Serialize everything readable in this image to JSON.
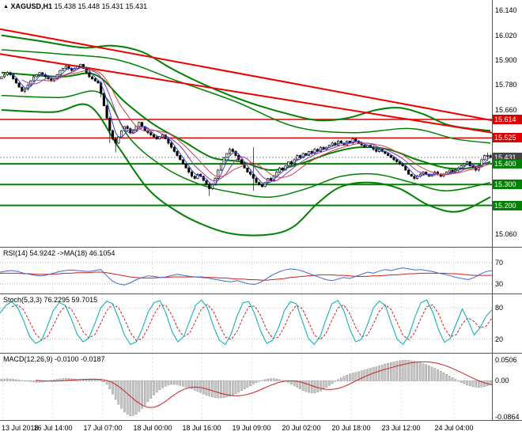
{
  "window": {
    "symbol": "XAGUSD,H1",
    "open": "15.438",
    "high": "15.448",
    "low": "15.431",
    "close": "15.431"
  },
  "colors": {
    "background": "#ffffff",
    "candle_bull": "#ffffff",
    "candle_bear": "#000000",
    "candle_outline": "#000000",
    "band_green": "#008000",
    "trend_red": "#ee0000",
    "rsi_line": "#4169cd",
    "rsi_ma": "#cc2222",
    "stoch_main": "#00adad",
    "stoch_signal": "#cc2222",
    "macd_hist_fill": "#c8c8c8",
    "macd_hist_stroke": "#808080",
    "macd_signal": "#cc2222",
    "grid": "#cfcfcf",
    "separator": "#555555",
    "badge_red": "#dd0000",
    "badge_green": "#008000",
    "badge_current": "#444444"
  },
  "price_axis": {
    "plain_labels": [
      "16.140",
      "16.020",
      "15.900",
      "15.780",
      "15.660",
      "15.060"
    ],
    "badges": [
      {
        "label": "15.614",
        "color": "red"
      },
      {
        "label": "15.525",
        "color": "red"
      },
      {
        "label": "15.431",
        "color": "current"
      },
      {
        "label": "15.400",
        "color": "green"
      },
      {
        "label": "15.300",
        "color": "green"
      },
      {
        "label": "15.200",
        "color": "green"
      }
    ]
  },
  "time_axis": {
    "labels": [
      "13 Jul 2018",
      "16 Jul 14:00",
      "17 Jul 07:00",
      "18 Jul 00:00",
      "18 Jul 16:00",
      "19 Jul 09:00",
      "20 Jul 02:00",
      "20 Jul 18:00",
      "23 Jul 12:00",
      "24 Jul 04:00"
    ],
    "indices": [
      1,
      18,
      35,
      52,
      69,
      86,
      103,
      120,
      137,
      155
    ]
  },
  "indicators": {
    "rsi": {
      "header": "RSI(14) 54.9242  ->MA(18) 46.1054",
      "levels": [
        "70",
        "30"
      ]
    },
    "stoch": {
      "header": "Stoch(5,3,3) 76.2295 59.7015",
      "levels": [
        "80",
        "20"
      ]
    },
    "macd": {
      "header": "MACD(12,26,9) -0.0100 -0.0187",
      "axis_labels": [
        "0.0506",
        "0.00",
        "-0.0864"
      ]
    }
  },
  "chart_data": [
    {
      "type": "candlestick",
      "title": "XAGUSD,H1",
      "ylim": [
        15.0,
        16.19
      ],
      "first_open": 15.81,
      "default_wick": 0.007,
      "closes": [
        15.82,
        15.83,
        15.84,
        15.83,
        15.81,
        15.79,
        15.77,
        15.75,
        15.76,
        15.78,
        15.8,
        15.82,
        15.83,
        15.84,
        15.83,
        15.82,
        15.81,
        15.8,
        15.81,
        15.83,
        15.85,
        15.86,
        15.87,
        15.86,
        15.85,
        15.86,
        15.87,
        15.88,
        15.86,
        15.84,
        15.82,
        15.81,
        15.8,
        15.79,
        15.74,
        15.68,
        15.62,
        15.56,
        15.52,
        15.5,
        15.53,
        15.56,
        15.58,
        15.57,
        15.55,
        15.56,
        15.58,
        15.6,
        15.58,
        15.56,
        15.55,
        15.54,
        15.53,
        15.52,
        15.53,
        15.54,
        15.52,
        15.5,
        15.48,
        15.46,
        15.44,
        15.42,
        15.4,
        15.38,
        15.36,
        15.34,
        15.33,
        15.35,
        15.34,
        15.32,
        15.3,
        15.28,
        15.3,
        15.33,
        15.37,
        15.4,
        15.43,
        15.45,
        15.47,
        15.46,
        15.44,
        15.42,
        15.4,
        15.38,
        15.36,
        15.35,
        15.33,
        15.31,
        15.3,
        15.29,
        15.31,
        15.33,
        15.32,
        15.34,
        15.36,
        15.38,
        15.37,
        15.39,
        15.41,
        15.4,
        15.42,
        15.44,
        15.43,
        15.45,
        15.44,
        15.46,
        15.45,
        15.47,
        15.46,
        15.48,
        15.47,
        15.48,
        15.49,
        15.5,
        15.49,
        15.51,
        15.5,
        15.49,
        15.51,
        15.5,
        15.52,
        15.51,
        15.5,
        15.49,
        15.48,
        15.49,
        15.48,
        15.47,
        15.46,
        15.47,
        15.46,
        15.45,
        15.44,
        15.43,
        15.42,
        15.41,
        15.4,
        15.39,
        15.37,
        15.35,
        15.34,
        15.33,
        15.34,
        15.35,
        15.36,
        15.35,
        15.34,
        15.35,
        15.36,
        15.35,
        15.34,
        15.35,
        15.36,
        15.37,
        15.36,
        15.37,
        15.38,
        15.39,
        15.4,
        15.41,
        15.39,
        15.38,
        15.37,
        15.39,
        15.42,
        15.44,
        15.44,
        15.431
      ],
      "wick_overrides": {
        "34": [
          15.8,
          15.72
        ],
        "37": [
          15.63,
          15.5
        ],
        "39": [
          15.53,
          15.455
        ],
        "71": [
          15.31,
          15.245
        ],
        "86": [
          15.48,
          15.27
        ],
        "166": [
          15.455,
          15.415
        ],
        "167": [
          15.448,
          15.425
        ]
      },
      "hlines": [
        {
          "price": 15.614,
          "color": "#dd0000",
          "width": 1.5
        },
        {
          "price": 15.525,
          "color": "#dd0000",
          "width": 1.5
        },
        {
          "price": 15.4,
          "color": "#008000",
          "width": 2
        },
        {
          "price": 15.3,
          "color": "#008000",
          "width": 2
        },
        {
          "price": 15.2,
          "color": "#008000",
          "width": 2
        }
      ],
      "current_price": 15.431,
      "trendlines": [
        {
          "points": [
            [
              0,
              16.05
            ],
            [
              168,
              15.61
            ]
          ],
          "color": "#ee0000",
          "width": 2
        },
        {
          "points": [
            [
              0,
              15.93
            ],
            [
              168,
              15.55
            ]
          ],
          "color": "#ee0000",
          "width": 2
        }
      ],
      "bands": [
        {
          "name": "upper",
          "color": "#008000",
          "width": 2,
          "points": [
            [
              0,
              16.02
            ],
            [
              14,
              15.99
            ],
            [
              28,
              15.96
            ],
            [
              38,
              15.97
            ],
            [
              48,
              15.94
            ],
            [
              58,
              15.86
            ],
            [
              68,
              15.79
            ],
            [
              78,
              15.73
            ],
            [
              88,
              15.68
            ],
            [
              98,
              15.64
            ],
            [
              108,
              15.61
            ],
            [
              118,
              15.62
            ],
            [
              128,
              15.66
            ],
            [
              136,
              15.67
            ],
            [
              144,
              15.64
            ],
            [
              152,
              15.59
            ],
            [
              160,
              15.57
            ],
            [
              167,
              15.56
            ]
          ]
        },
        {
          "name": "upper2",
          "color": "#008000",
          "width": 1.5,
          "points": [
            [
              0,
              15.95
            ],
            [
              20,
              15.93
            ],
            [
              40,
              15.9
            ],
            [
              60,
              15.8
            ],
            [
              80,
              15.7
            ],
            [
              100,
              15.58
            ],
            [
              120,
              15.55
            ],
            [
              140,
              15.57
            ],
            [
              155,
              15.52
            ],
            [
              167,
              15.5
            ]
          ]
        },
        {
          "name": "middle",
          "color": "#008000",
          "width": 2,
          "points": [
            [
              0,
              15.84
            ],
            [
              20,
              15.82
            ],
            [
              32,
              15.83
            ],
            [
              42,
              15.7
            ],
            [
              52,
              15.59
            ],
            [
              62,
              15.51
            ],
            [
              72,
              15.43
            ],
            [
              82,
              15.41
            ],
            [
              92,
              15.37
            ],
            [
              102,
              15.4
            ],
            [
              112,
              15.45
            ],
            [
              122,
              15.48
            ],
            [
              132,
              15.47
            ],
            [
              142,
              15.42
            ],
            [
              152,
              15.38
            ],
            [
              160,
              15.38
            ],
            [
              167,
              15.41
            ]
          ]
        },
        {
          "name": "lower2",
          "color": "#008000",
          "width": 1.5,
          "points": [
            [
              0,
              15.73
            ],
            [
              20,
              15.72
            ],
            [
              34,
              15.74
            ],
            [
              44,
              15.52
            ],
            [
              56,
              15.38
            ],
            [
              68,
              15.3
            ],
            [
              80,
              15.26
            ],
            [
              92,
              15.24
            ],
            [
              104,
              15.28
            ],
            [
              116,
              15.34
            ],
            [
              128,
              15.35
            ],
            [
              140,
              15.31
            ],
            [
              152,
              15.27
            ],
            [
              167,
              15.31
            ]
          ]
        },
        {
          "name": "lower",
          "color": "#008000",
          "width": 2,
          "points": [
            [
              0,
              15.66
            ],
            [
              18,
              15.65
            ],
            [
              30,
              15.68
            ],
            [
              40,
              15.48
            ],
            [
              50,
              15.28
            ],
            [
              60,
              15.17
            ],
            [
              70,
              15.1
            ],
            [
              80,
              15.06
            ],
            [
              92,
              15.06
            ],
            [
              100,
              15.1
            ],
            [
              108,
              15.21
            ],
            [
              116,
              15.29
            ],
            [
              126,
              15.31
            ],
            [
              136,
              15.28
            ],
            [
              146,
              15.2
            ],
            [
              156,
              15.17
            ],
            [
              167,
              15.24
            ]
          ]
        }
      ],
      "moving_averages": [
        {
          "window": 4,
          "color": "#3344cc",
          "width": 1
        },
        {
          "window": 8,
          "color": "#9933aa",
          "width": 1
        },
        {
          "window": 13,
          "color": "#cc4444",
          "width": 1
        }
      ]
    },
    {
      "type": "line",
      "name": "RSI",
      "ylim": [
        12,
        98
      ],
      "levels": [
        70,
        30
      ],
      "values": [
        52,
        54,
        55,
        53,
        50,
        48,
        46,
        45,
        47,
        50,
        53,
        55,
        56,
        55,
        54,
        53,
        55,
        57,
        45,
        35,
        30,
        28,
        32,
        38,
        42,
        45,
        44,
        42,
        43,
        46,
        48,
        46,
        44,
        43,
        42,
        41,
        39,
        37,
        35,
        34,
        36,
        33,
        30,
        29,
        33,
        40,
        47,
        52,
        56,
        58,
        57,
        54,
        50,
        46,
        42,
        38,
        36,
        39,
        42,
        40,
        44,
        48,
        52,
        50,
        54,
        57,
        55,
        58,
        60,
        58,
        56,
        57,
        55,
        53,
        50,
        48,
        45,
        42,
        40,
        38,
        42,
        48,
        53,
        54.9
      ],
      "ma": [
        50,
        50,
        50,
        50,
        49,
        49,
        48,
        48,
        48,
        48,
        49,
        50,
        50,
        51,
        51,
        51,
        52,
        52,
        51,
        49,
        47,
        45,
        43,
        42,
        41,
        41,
        41,
        42,
        42,
        43,
        43,
        43,
        43,
        43,
        43,
        42,
        42,
        41,
        41,
        40,
        39,
        39,
        38,
        38,
        37,
        37,
        38,
        39,
        40,
        42,
        43,
        44,
        45,
        46,
        47,
        47,
        47,
        46,
        46,
        45,
        44,
        44,
        44,
        45,
        45,
        46,
        47,
        47,
        48,
        49,
        49,
        50,
        50,
        50,
        50,
        50,
        49,
        49,
        48,
        47,
        46,
        46,
        46,
        46.1
      ]
    },
    {
      "type": "line",
      "name": "Stochastic",
      "ylim": [
        -6,
        106
      ],
      "levels": [
        80,
        20
      ],
      "signal_window": 3,
      "values": [
        70,
        85,
        92,
        80,
        55,
        25,
        12,
        18,
        45,
        75,
        90,
        85,
        60,
        30,
        15,
        22,
        50,
        80,
        93,
        88,
        60,
        28,
        10,
        15,
        40,
        72,
        90,
        94,
        70,
        35,
        15,
        25,
        55,
        85,
        95,
        80,
        45,
        18,
        10,
        30,
        65,
        90,
        92,
        68,
        35,
        12,
        18,
        42,
        75,
        92,
        88,
        55,
        22,
        10,
        25,
        58,
        88,
        94,
        75,
        40,
        15,
        20,
        48,
        80,
        93,
        85,
        52,
        20,
        10,
        28,
        62,
        90,
        95,
        72,
        38,
        14,
        22,
        50,
        78,
        55,
        28,
        42,
        64,
        76.2
      ]
    },
    {
      "type": "bar",
      "name": "MACD",
      "ylim": [
        -0.095,
        0.066
      ],
      "signal_window": 7,
      "axis_values": [
        0.0506,
        0,
        -0.0864
      ],
      "values": [
        0.004,
        0.005,
        0.004,
        0.002,
        0,
        -0.002,
        -0.004,
        -0.003,
        0,
        0.003,
        0.005,
        0.006,
        0.005,
        0.003,
        0.002,
        0.003,
        0.004,
        0.002,
        -0.01,
        -0.035,
        -0.06,
        -0.078,
        -0.086,
        -0.08,
        -0.065,
        -0.048,
        -0.032,
        -0.02,
        -0.012,
        -0.008,
        -0.01,
        -0.014,
        -0.018,
        -0.024,
        -0.03,
        -0.036,
        -0.04,
        -0.042,
        -0.04,
        -0.036,
        -0.03,
        -0.022,
        -0.014,
        -0.006,
        0,
        0.004,
        0.006,
        0.004,
        0,
        -0.006,
        -0.014,
        -0.022,
        -0.028,
        -0.03,
        -0.026,
        -0.018,
        -0.008,
        0.002,
        0.01,
        0.016,
        0.02,
        0.024,
        0.028,
        0.032,
        0.036,
        0.04,
        0.044,
        0.047,
        0.05,
        0.05,
        0.048,
        0.044,
        0.04,
        0.034,
        0.028,
        0.02,
        0.012,
        0.004,
        -0.004,
        -0.01,
        -0.014,
        -0.016,
        -0.014,
        -0.01
      ]
    }
  ]
}
